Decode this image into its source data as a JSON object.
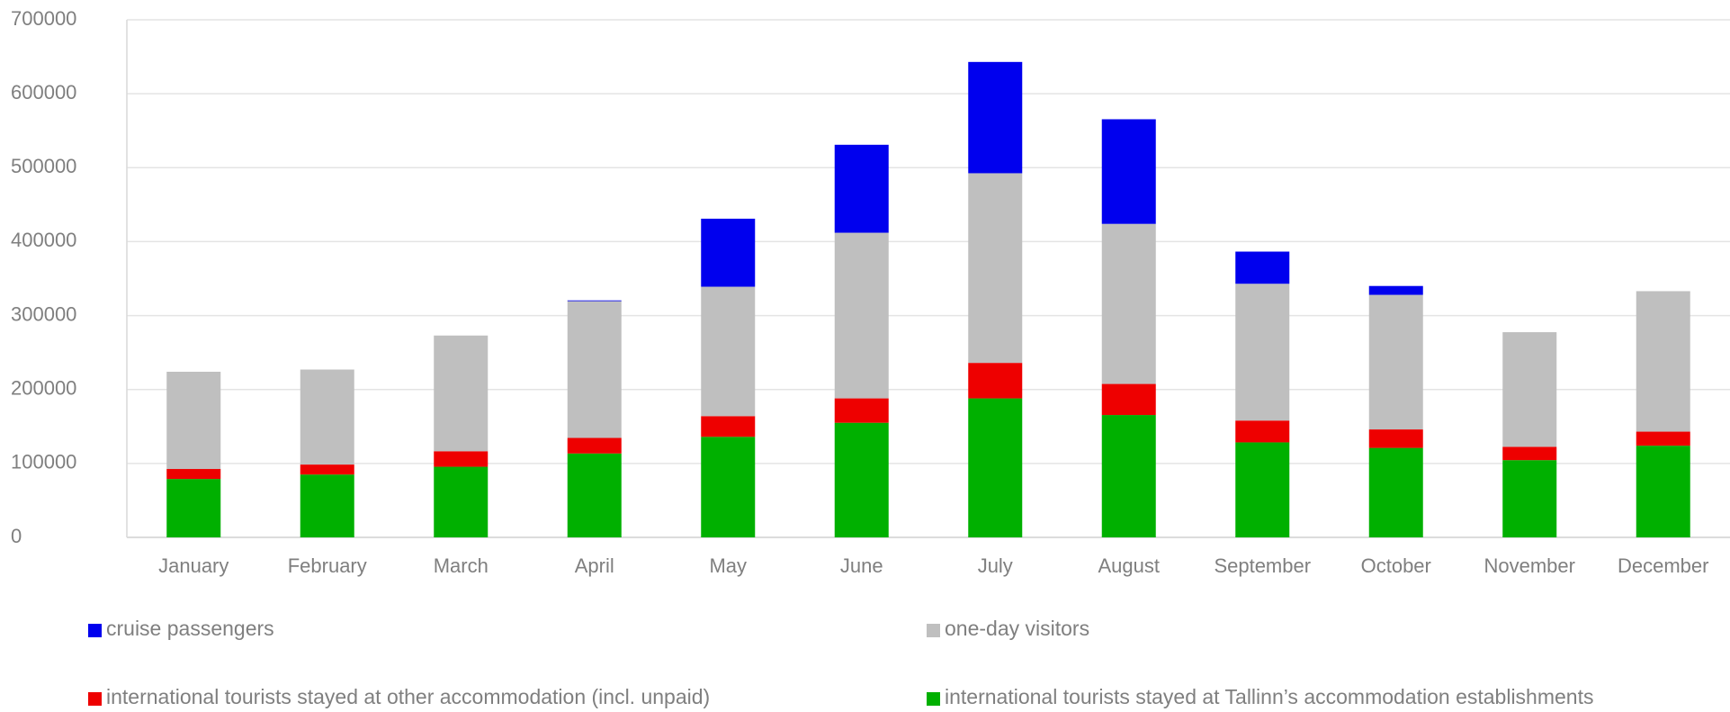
{
  "chart_data": {
    "type": "stacked_bar",
    "categories": [
      "January",
      "February",
      "March",
      "April",
      "May",
      "June",
      "July",
      "August",
      "September",
      "October",
      "November",
      "December"
    ],
    "series": [
      {
        "name": "cruise passengers",
        "color": "#0000ee",
        "values": [
          0,
          0,
          0,
          1000,
          92000,
          119000,
          150500,
          141500,
          43500,
          12000,
          0,
          0
        ]
      },
      {
        "name": "one-day visitors",
        "color": "#bfbfbf",
        "values": [
          131500,
          128500,
          156500,
          185000,
          175000,
          224000,
          256500,
          216500,
          185000,
          182000,
          155000,
          190000
        ]
      },
      {
        "name": "international tourists stayed at other accommodation (incl. unpaid)",
        "color": "#ee0000",
        "values": [
          13500,
          13500,
          21000,
          21000,
          28000,
          33000,
          48000,
          42000,
          29500,
          25000,
          18000,
          19000
        ]
      },
      {
        "name": "international tourists stayed at Tallinn’s accommodation establishments",
        "color": "#00b000",
        "values": [
          79000,
          85000,
          95500,
          113500,
          136000,
          155000,
          188000,
          165500,
          128500,
          121000,
          104500,
          124000
        ]
      }
    ],
    "ylim": [
      0,
      700000
    ],
    "yticks": [
      0,
      100000,
      200000,
      300000,
      400000,
      500000,
      600000,
      700000
    ],
    "grid": true,
    "legend": "bottom"
  }
}
